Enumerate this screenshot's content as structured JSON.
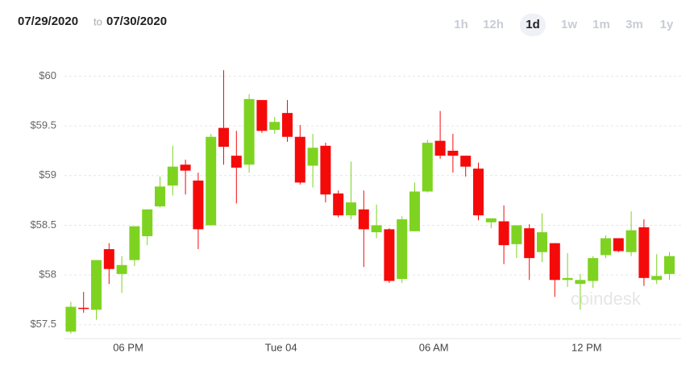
{
  "header": {
    "from": "07/29/2020",
    "to_word": "to",
    "to": "07/30/2020",
    "ranges": [
      "1h",
      "12h",
      "1d",
      "1w",
      "1m",
      "3m",
      "1y"
    ],
    "selected_range": "1d",
    "watermark": "coindesk"
  },
  "chart_data": {
    "type": "candlestick",
    "categories": [
      null,
      null,
      null,
      null,
      null,
      "06 PM",
      null,
      null,
      null,
      null,
      null,
      null,
      null,
      null,
      null,
      null,
      null,
      "Tue 04",
      null,
      null,
      null,
      null,
      null,
      null,
      null,
      null,
      null,
      null,
      null,
      "06 AM",
      null,
      null,
      null,
      null,
      null,
      null,
      null,
      null,
      null,
      null,
      null,
      "12 PM",
      null,
      null,
      null,
      null,
      null,
      null
    ],
    "open": [
      57.43,
      57.67,
      57.65,
      58.26,
      58.01,
      58.15,
      58.39,
      58.69,
      58.9,
      59.11,
      58.95,
      58.5,
      59.48,
      59.2,
      59.11,
      59.76,
      59.46,
      59.63,
      59.39,
      59.1,
      59.3,
      58.82,
      58.6,
      58.66,
      58.43,
      58.46,
      57.96,
      58.44,
      58.84,
      59.35,
      59.25,
      59.2,
      59.07,
      58.53,
      58.54,
      58.31,
      58.47,
      58.23,
      58.32,
      57.95,
      57.91,
      57.94,
      58.2,
      58.37,
      58.23,
      58.48,
      57.95,
      58.01
    ],
    "high": [
      57.73,
      57.83,
      58.15,
      58.32,
      58.19,
      58.49,
      58.66,
      58.99,
      59.3,
      59.16,
      59.03,
      59.42,
      60.06,
      59.45,
      59.82,
      59.76,
      59.59,
      59.76,
      59.51,
      59.42,
      59.33,
      58.85,
      59.14,
      58.85,
      58.71,
      58.47,
      58.59,
      58.93,
      59.36,
      59.65,
      59.42,
      59.2,
      59.13,
      58.57,
      58.7,
      58.5,
      58.51,
      58.62,
      58.32,
      58.22,
      58.01,
      58.19,
      58.4,
      58.37,
      58.64,
      58.56,
      58.21,
      58.23
    ],
    "low": [
      57.41,
      57.62,
      57.55,
      57.91,
      57.82,
      58.09,
      58.3,
      58.68,
      58.8,
      58.81,
      58.26,
      58.5,
      59.11,
      58.72,
      59.03,
      59.43,
      59.42,
      59.34,
      58.91,
      58.88,
      58.73,
      58.58,
      58.56,
      58.08,
      58.37,
      57.92,
      57.92,
      58.44,
      58.83,
      59.17,
      59.03,
      58.99,
      58.55,
      58.47,
      58.11,
      58.17,
      57.95,
      58.13,
      57.78,
      57.88,
      57.65,
      57.87,
      58.17,
      58.23,
      58.19,
      57.89,
      57.91,
      57.95
    ],
    "close": [
      57.68,
      57.66,
      58.15,
      58.06,
      58.1,
      58.49,
      58.66,
      58.89,
      59.09,
      59.05,
      58.46,
      59.39,
      59.29,
      59.08,
      59.77,
      59.45,
      59.54,
      59.39,
      58.93,
      59.28,
      58.81,
      58.6,
      58.73,
      58.46,
      58.5,
      57.94,
      58.56,
      58.84,
      59.33,
      59.2,
      59.2,
      59.09,
      58.6,
      58.57,
      58.3,
      58.5,
      58.17,
      58.43,
      57.95,
      57.97,
      57.95,
      58.17,
      58.37,
      58.24,
      58.45,
      57.97,
      57.99,
      58.19
    ],
    "up_color": "#7ed321",
    "down_color": "#f50a0a",
    "ylim": [
      57.36,
      60.28
    ],
    "yticks": [
      {
        "value": 57.5,
        "label": "$57.5"
      },
      {
        "value": 58,
        "label": "$58"
      },
      {
        "value": 58.5,
        "label": "$58.5"
      },
      {
        "value": 59,
        "label": "$59"
      },
      {
        "value": 59.5,
        "label": "$59.5"
      },
      {
        "value": 60,
        "label": "$60"
      }
    ],
    "grid": true
  }
}
